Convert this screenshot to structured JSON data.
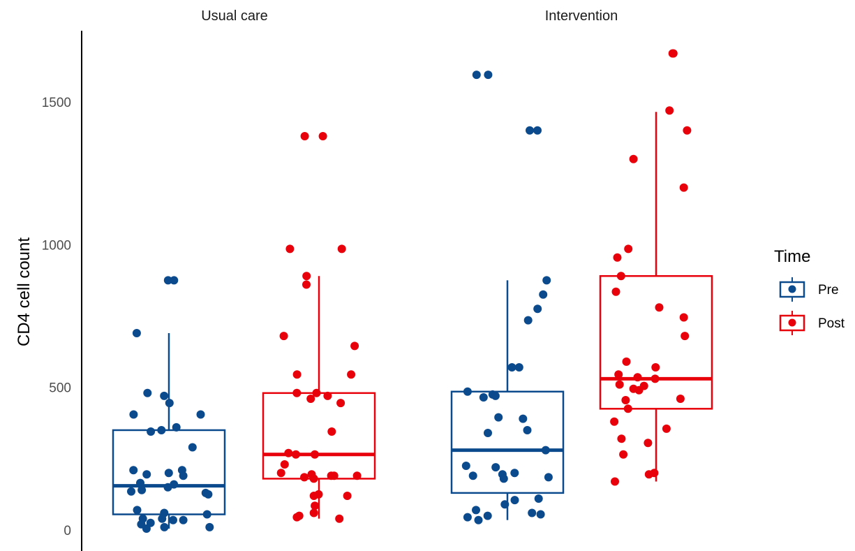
{
  "chart_data": {
    "type": "box",
    "ylabel": "CD4 cell count",
    "xlabel": "",
    "ylim": [
      -60,
      1720
    ],
    "yticks": [
      0,
      500,
      1000,
      1500
    ],
    "facets": [
      "Usual care",
      "Intervention"
    ],
    "legend": {
      "title": "Time",
      "position": "right",
      "entries": [
        "Pre",
        "Post"
      ]
    },
    "colors": {
      "Pre": "#0b4a8c",
      "Post": "#e8000b"
    },
    "groups": [
      {
        "facet": "Usual care",
        "series": "Pre",
        "box": {
          "q1": 55,
          "median": 155,
          "q3": 350,
          "whisker_low": 5,
          "whisker_high": 690
        },
        "points": [
          875,
          875,
          690,
          480,
          470,
          445,
          405,
          405,
          360,
          350,
          345,
          290,
          210,
          210,
          200,
          195,
          190,
          165,
          160,
          150,
          140,
          135,
          130,
          125,
          70,
          60,
          55,
          40,
          40,
          35,
          35,
          25,
          20,
          10,
          10,
          5
        ]
      },
      {
        "facet": "Usual care",
        "series": "Post",
        "box": {
          "q1": 180,
          "median": 265,
          "q3": 480,
          "whisker_low": 40,
          "whisker_high": 890
        },
        "points": [
          1380,
          1380,
          985,
          985,
          890,
          860,
          680,
          645,
          545,
          545,
          480,
          480,
          470,
          460,
          445,
          345,
          270,
          265,
          265,
          230,
          200,
          195,
          190,
          190,
          190,
          185,
          180,
          125,
          120,
          120,
          85,
          60,
          50,
          45,
          40
        ]
      },
      {
        "facet": "Intervention",
        "series": "Pre",
        "box": {
          "q1": 130,
          "median": 280,
          "q3": 485,
          "whisker_low": 35,
          "whisker_high": 875
        },
        "points": [
          1595,
          1595,
          1400,
          1400,
          875,
          825,
          775,
          735,
          570,
          570,
          485,
          475,
          470,
          465,
          395,
          390,
          350,
          340,
          280,
          225,
          220,
          200,
          195,
          190,
          185,
          180,
          110,
          105,
          90,
          70,
          60,
          55,
          50,
          45,
          35
        ]
      },
      {
        "facet": "Intervention",
        "series": "Post",
        "box": {
          "q1": 425,
          "median": 530,
          "q3": 890,
          "whisker_low": 170,
          "whisker_high": 1465
        },
        "points": [
          1670,
          1670,
          1470,
          1400,
          1300,
          1200,
          985,
          955,
          890,
          835,
          780,
          745,
          680,
          590,
          570,
          545,
          535,
          530,
          510,
          505,
          495,
          490,
          460,
          455,
          425,
          380,
          355,
          320,
          305,
          265,
          200,
          195,
          170
        ]
      }
    ]
  }
}
